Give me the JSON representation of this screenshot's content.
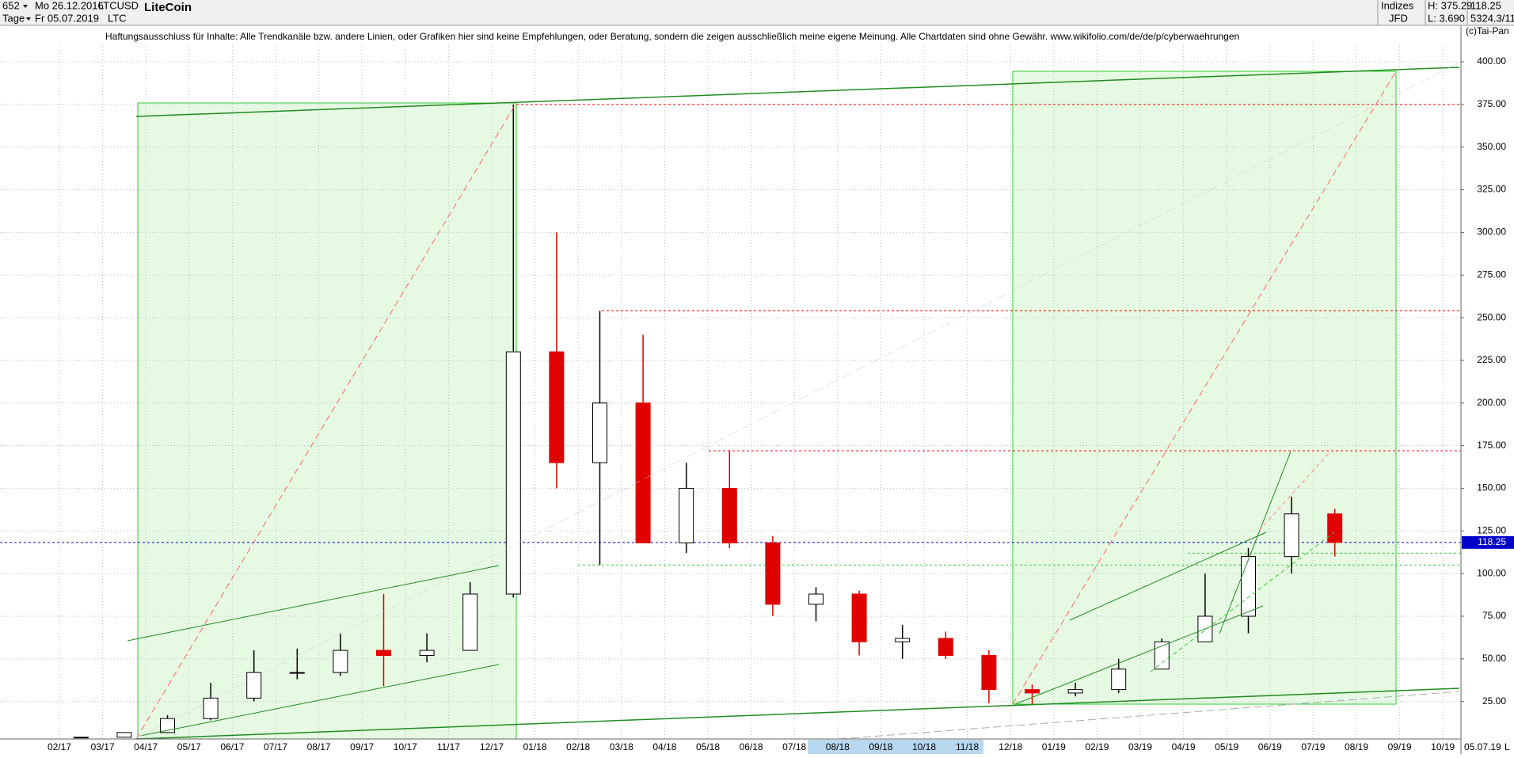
{
  "header": {
    "id": "652",
    "start_date": "Mo 26.12.2016",
    "symbol": "LTCUSD",
    "name": "LiteCoin",
    "period": "Tage",
    "end_date": "Fr 05.07.2019",
    "short": "LTC",
    "group": "Indizes",
    "high": "H: 375.29",
    "last": "118.25",
    "broker": "JFD",
    "low": "L: 3.690",
    "volume": "5324.3/11",
    "copyright": "(c)Tai-Pan",
    "disclaimer": "Haftungsausschluss für Inhalte: Alle Trendkanäle bzw. andere Linien, oder Grafiken hier sind keine Empfehlungen, oder Beratung, sondern die zeigen ausschließlich meine eigene Meinung. Alle Chartdaten sind ohne Gewähr.  www.wikifolio.com/de/de/p/cyberwaehrungen",
    "end_label": "05.07.19",
    "scale_mode": "L"
  },
  "chart_data": {
    "type": "candlestick",
    "categories": [
      "02/17",
      "03/17",
      "04/17",
      "05/17",
      "06/17",
      "07/17",
      "08/17",
      "09/17",
      "10/17",
      "11/17",
      "12/17",
      "01/18",
      "02/18",
      "03/18",
      "04/18",
      "05/18",
      "06/18",
      "07/18",
      "08/18",
      "09/18",
      "10/18",
      "11/18",
      "12/18",
      "01/19",
      "02/19",
      "03/19",
      "04/19",
      "05/19",
      "06/19",
      "07/19",
      "08/19",
      "09/19",
      "10/19"
    ],
    "open": [
      3.9,
      4.1,
      6.8,
      15,
      27,
      42,
      42,
      55,
      52,
      55,
      88,
      230,
      165,
      200,
      118,
      150,
      118,
      82,
      88,
      60,
      62,
      52,
      32,
      30,
      32,
      44,
      60,
      75,
      110,
      135,
      null,
      null,
      null
    ],
    "high": [
      4.2,
      7,
      17,
      36,
      55,
      56,
      65,
      88,
      65,
      95,
      375,
      300,
      254,
      240,
      165,
      172,
      122,
      92,
      90,
      70,
      66,
      55,
      35,
      36,
      50,
      62,
      100,
      115,
      145,
      138,
      null,
      null,
      null
    ],
    "low": [
      3.7,
      3.8,
      6.5,
      14,
      25,
      38,
      40,
      34,
      48,
      55,
      86,
      150,
      105,
      118,
      112,
      115,
      75,
      72,
      52,
      50,
      50,
      24,
      23,
      28,
      30,
      44,
      60,
      65,
      100,
      110,
      null,
      null,
      null
    ],
    "close": [
      4.1,
      6.8,
      15,
      27,
      42,
      42,
      55,
      52,
      55,
      88,
      230,
      165,
      200,
      118,
      150,
      118,
      82,
      88,
      60,
      62,
      52,
      32,
      30,
      32,
      44,
      60,
      75,
      110,
      135,
      118.25,
      null,
      null,
      null
    ],
    "up_color": "#000000",
    "down_color": "#e00000",
    "last_price": 118.25,
    "levels": [
      {
        "value": 375,
        "color": "#ff0000"
      },
      {
        "value": 254,
        "color": "#ff0000"
      },
      {
        "value": 172,
        "color": "#ff0000"
      },
      {
        "value": 118.25,
        "color": "#0000cc"
      },
      {
        "value": 112,
        "color": "#33cc33"
      },
      {
        "value": 105,
        "color": "#33cc33"
      }
    ],
    "ylim": [
      3.5,
      410.7
    ],
    "yticks": [
      {
        "value": 25,
        "label": "25.00"
      },
      {
        "value": 50,
        "label": "50.00"
      },
      {
        "value": 75,
        "label": "75.00"
      },
      {
        "value": 100,
        "label": "100.00"
      },
      {
        "value": 125,
        "label": "125.00"
      },
      {
        "value": 150,
        "label": "150.00"
      },
      {
        "value": 175,
        "label": "175.00"
      },
      {
        "value": 200,
        "label": "200.00"
      },
      {
        "value": 225,
        "label": "225.00"
      },
      {
        "value": 250,
        "label": "250.00"
      },
      {
        "value": 275,
        "label": "275.00"
      },
      {
        "value": 300,
        "label": "300.00"
      },
      {
        "value": 325,
        "label": "325.00"
      },
      {
        "value": 350,
        "label": "350.00"
      },
      {
        "value": 375,
        "label": "375.00"
      },
      {
        "value": 400,
        "label": "400.00"
      }
    ],
    "grid": true
  }
}
